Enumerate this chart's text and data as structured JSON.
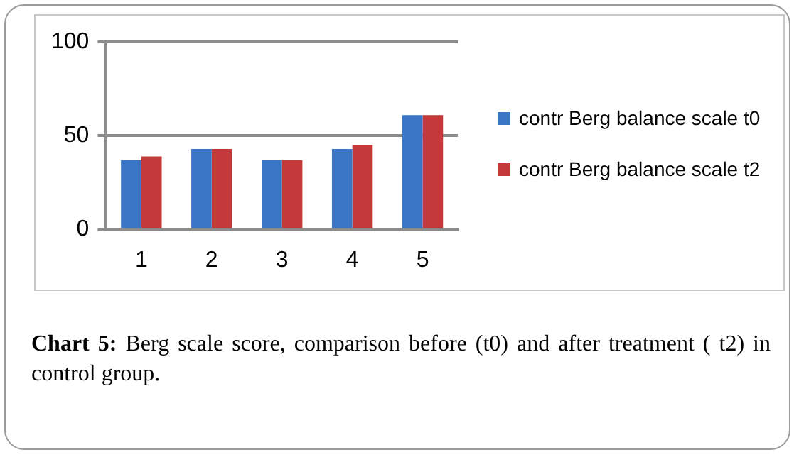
{
  "chart_data": {
    "type": "bar",
    "categories": [
      "1",
      "2",
      "3",
      "4",
      "5"
    ],
    "series": [
      {
        "name": "contr Berg balance scale t0",
        "color": "#3b76c6",
        "values": [
          37,
          43,
          37,
          43,
          61
        ]
      },
      {
        "name": "contr Berg balance scale t2",
        "color": "#c43a3a",
        "values": [
          39,
          43,
          37,
          45,
          61
        ]
      }
    ],
    "ylim": [
      0,
      100
    ],
    "yticks": [
      0,
      50,
      100
    ],
    "grid": "y",
    "legend": "right",
    "annotations": [
      "**Chart 5:** Berg scale score, comparison before (t0) and after treatment ( t2) in control group."
    ]
  }
}
